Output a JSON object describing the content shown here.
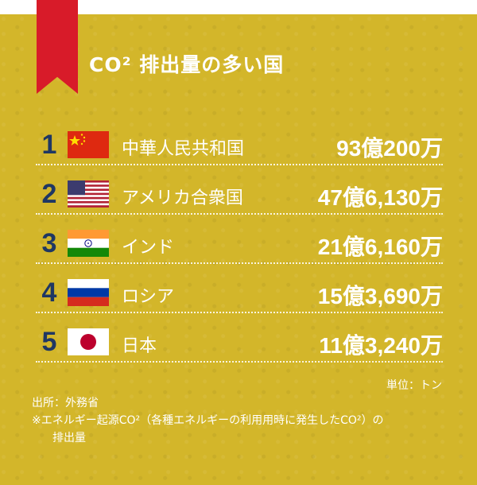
{
  "title": "CO² 排出量の多い国",
  "colors": {
    "background": "#d3b62a",
    "ribbon": "#d81b29",
    "rank": "#1f3763",
    "text": "#ffffff"
  },
  "rows": [
    {
      "rank": "1",
      "flag": "china-flag-icon",
      "country": "中華人民共和国",
      "amount": "93億200万"
    },
    {
      "rank": "2",
      "flag": "usa-flag-icon",
      "country": "アメリカ合衆国",
      "amount": "47億6,130万"
    },
    {
      "rank": "3",
      "flag": "india-flag-icon",
      "country": "インド",
      "amount": "21億6,160万"
    },
    {
      "rank": "4",
      "flag": "russia-flag-icon",
      "country": "ロシア",
      "amount": "15億3,690万"
    },
    {
      "rank": "5",
      "flag": "japan-flag-icon",
      "country": "日本",
      "amount": "11億3,240万"
    }
  ],
  "unit": "単位：トン",
  "notes": {
    "source": "出所：外務省",
    "note_line1": "※エネルギー起源CO²（各種エネルギーの利用用時に発生したCO²）の",
    "note_line2": "排出量"
  }
}
